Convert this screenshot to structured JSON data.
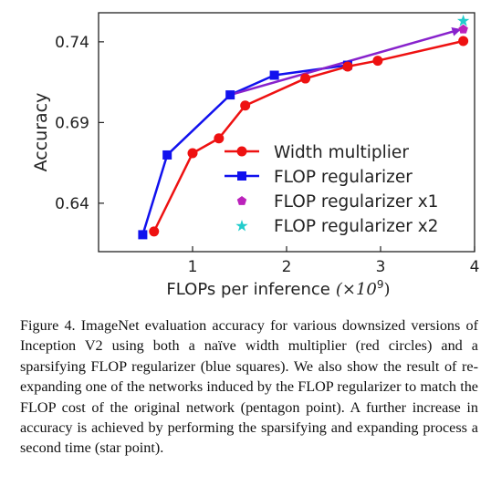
{
  "chart_data": {
    "type": "line",
    "xlabel": "FLOPs per inference",
    "xlabel_unit": "(×10",
    "xlabel_unit_exp": "9",
    "xlabel_unit_close": ")",
    "ylabel": "Accuracy",
    "xlim": [
      0.0,
      4.0
    ],
    "ylim": [
      0.61,
      0.758
    ],
    "xticks": [
      1,
      2,
      3,
      4
    ],
    "yticks": [
      0.64,
      0.69,
      0.74
    ],
    "ytick_labels": [
      "0.64",
      "0.69",
      "0.74"
    ],
    "grid": false,
    "legend_position": "right",
    "series": [
      {
        "name": "Width multiplier",
        "color": "#ee1111",
        "marker": "circle",
        "x": [
          0.59,
          1.0,
          1.28,
          1.56,
          2.2,
          2.65,
          2.97,
          3.88
        ],
        "y": [
          0.6225,
          0.671,
          0.6802,
          0.7005,
          0.7173,
          0.7247,
          0.7283,
          0.7405
        ]
      },
      {
        "name": "FLOP regularizer",
        "color": "#1111ee",
        "marker": "square",
        "x": [
          0.47,
          0.73,
          1.4,
          1.87,
          2.65
        ],
        "y": [
          0.6205,
          0.6699,
          0.7071,
          0.7193,
          0.7255
        ]
      },
      {
        "name": "FLOP regularizer x1",
        "color": "#bb22bb",
        "marker": "pentagon",
        "x": [
          3.88
        ],
        "y": [
          0.7477
        ]
      },
      {
        "name": "FLOP regularizer x2",
        "color": "#22cccc",
        "marker": "star",
        "x": [
          3.88
        ],
        "y": [
          0.7529
        ]
      }
    ],
    "arrow": {
      "color": "#8822cc",
      "x": [
        1.4,
        3.84
      ],
      "y": [
        0.7071,
        0.7475
      ]
    }
  },
  "caption": "Figure 4. ImageNet evaluation accuracy for various downsized versions of Inception V2 using both a naïve width multiplier (red circles) and a sparsifying FLOP regularizer (blue squares). We also show the result of re-expanding one of the networks induced by the FLOP regularizer to match the FLOP cost of the original network (pentagon point). A further increase in accuracy is achieved by performing the sparsifying and expanding process a second time (star point)."
}
